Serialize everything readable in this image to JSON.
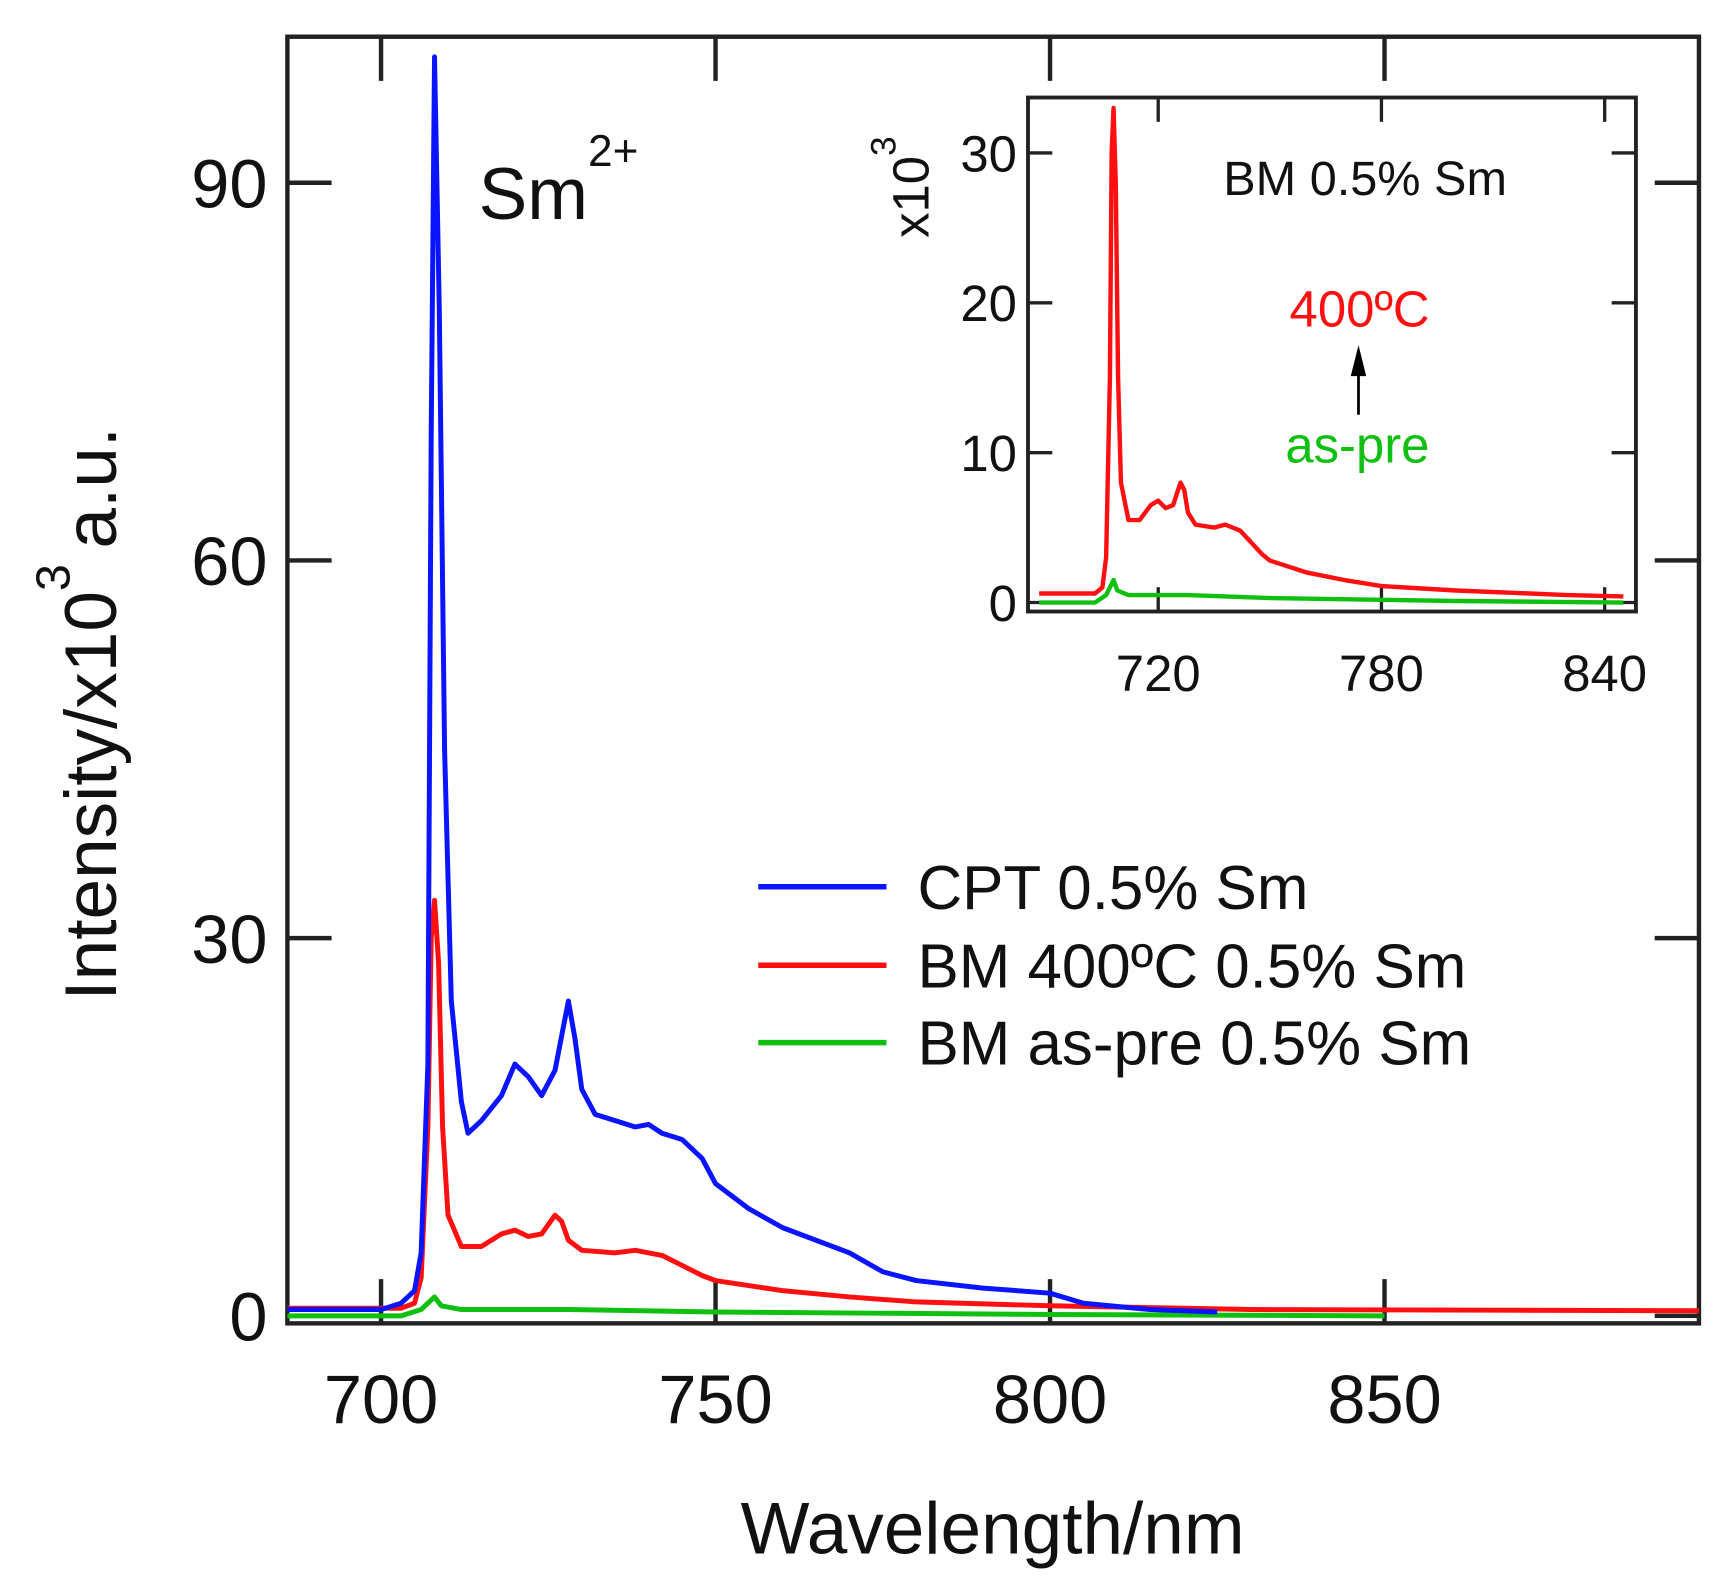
{
  "chart_data": [
    {
      "type": "line",
      "title": "",
      "xlabel": "Wavelength/nm",
      "ylabel": "Intensity/x10",
      "ylabel_exp": "3",
      "ylabel_unit": "a.u.",
      "annotation": {
        "base": "Sm",
        "sup": "2+"
      },
      "xlim": [
        686,
        897
      ],
      "ylim": [
        -0.6,
        101.6
      ],
      "xticks": [
        700,
        750,
        800,
        850
      ],
      "yticks": [
        0,
        30,
        60,
        90
      ],
      "legend_position": "center-right",
      "series": [
        {
          "name": "CPT 0.5% Sm",
          "color": "#0a14ff",
          "x": [
            686,
            700,
            703,
            705,
            706,
            707,
            707.5,
            708,
            708.7,
            709.5,
            710.5,
            712,
            713,
            715,
            718,
            720,
            722,
            724,
            726,
            728,
            729,
            730,
            732,
            735,
            738,
            740,
            742,
            745,
            748,
            750,
            755,
            760,
            770,
            775,
            780,
            790,
            800,
            805,
            815,
            825
          ],
          "y": [
            0.5,
            0.5,
            1,
            2,
            5,
            20,
            70,
            100,
            80,
            45,
            25,
            17,
            14.5,
            15.5,
            17.5,
            20,
            19,
            17.5,
            19.5,
            25,
            22,
            18,
            16,
            15.5,
            15,
            15.2,
            14.5,
            14,
            12.5,
            10.5,
            8.5,
            7,
            5,
            3.5,
            2.8,
            2.2,
            1.8,
            1,
            0.5,
            0.3
          ]
        },
        {
          "name": "BM 400ºC 0.5% Sm",
          "color": "#ff1010",
          "x": [
            686,
            703,
            705,
            706,
            707,
            707.5,
            708,
            708.6,
            709.2,
            710,
            712,
            715,
            718,
            720,
            722,
            724,
            726,
            727,
            728,
            730,
            735,
            738,
            742,
            745,
            748,
            750,
            760,
            770,
            780,
            800,
            830,
            897
          ],
          "y": [
            0.6,
            0.6,
            1,
            3,
            15,
            30,
            33,
            28,
            15,
            8,
            5.5,
            5.5,
            6.5,
            6.8,
            6.3,
            6.5,
            8,
            7.5,
            6,
            5.2,
            5,
            5.2,
            4.8,
            4,
            3.2,
            2.8,
            2,
            1.5,
            1.1,
            0.8,
            0.5,
            0.4
          ]
        },
        {
          "name": "BM as-pre 0.5% Sm",
          "color": "#10c010",
          "x": [
            686,
            703,
            706,
            708,
            709,
            712,
            720,
            728,
            750,
            800,
            850
          ],
          "y": [
            0,
            0,
            0.5,
            1.5,
            0.8,
            0.5,
            0.5,
            0.5,
            0.3,
            0.1,
            0
          ]
        }
      ]
    },
    {
      "type": "line",
      "title": "BM 0.5% Sm",
      "ylabel": "x10",
      "ylabel_exp": "3",
      "xlim": [
        685,
        848.4
      ],
      "ylim": [
        -0.6,
        33.7
      ],
      "xticks": [
        720,
        780,
        840
      ],
      "yticks": [
        0,
        10,
        20,
        30
      ],
      "annotations": {
        "top": "400ºC",
        "bottom": "as-pre",
        "arrow": "up"
      },
      "series": [
        {
          "name": "400ºC",
          "color": "#ff1010",
          "x": [
            688,
            703,
            705,
            706,
            707,
            707.5,
            708,
            708.6,
            709.2,
            710,
            712,
            715,
            718,
            720,
            722,
            724,
            726,
            727,
            728,
            730,
            735,
            738,
            742,
            745,
            748,
            750,
            760,
            770,
            780,
            800,
            830,
            845
          ],
          "y": [
            0.6,
            0.6,
            1,
            3,
            15,
            30,
            33,
            28,
            15,
            8,
            5.5,
            5.5,
            6.5,
            6.8,
            6.3,
            6.5,
            8,
            7.5,
            6,
            5.2,
            5,
            5.2,
            4.8,
            4,
            3.2,
            2.8,
            2,
            1.5,
            1.1,
            0.8,
            0.5,
            0.4
          ]
        },
        {
          "name": "as-pre",
          "color": "#10c010",
          "x": [
            688,
            703,
            706,
            708,
            709,
            712,
            720,
            728,
            750,
            800,
            845
          ],
          "y": [
            0,
            0,
            0.5,
            1.5,
            0.8,
            0.5,
            0.5,
            0.5,
            0.3,
            0.1,
            0
          ]
        }
      ]
    }
  ]
}
